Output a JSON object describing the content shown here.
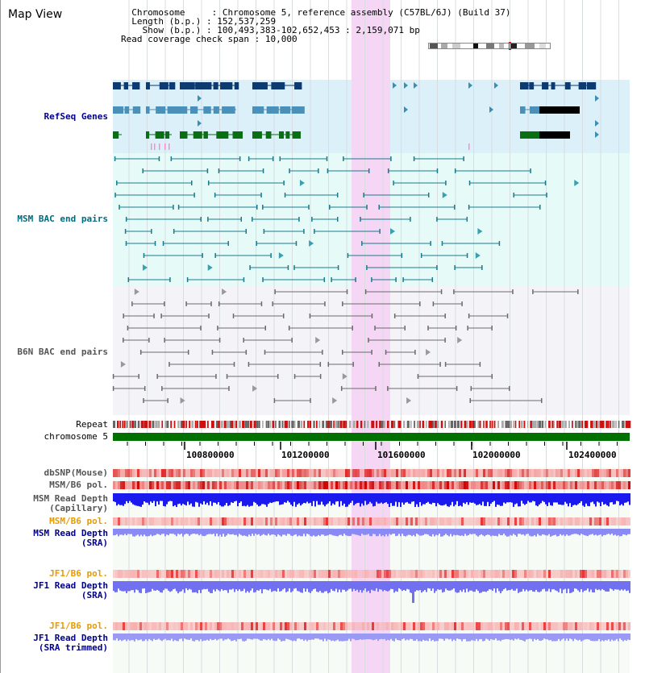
{
  "title": "Map View",
  "info": {
    "chromosome_key": "Chromosome",
    "chromosome_val": "Chromosome 5, reference assembly (C57BL/6J) (Build 37)",
    "length_key": "Length (b.p.)",
    "length_val": "152,537,259",
    "show_key": "Show (b.p.)",
    "show_val": "100,493,383-102,652,453 : 2,159,071 bp",
    "span_key": "Read coverage check span",
    "span_val": "10,000"
  },
  "tracks": {
    "refseq": "RefSeq Genes",
    "msm_bac": "MSM BAC end pairs",
    "b6n_bac": "B6N BAC end pairs",
    "repeat": "Repeat",
    "chromosome": "chromosome 5",
    "dbsnp": "dbSNP(Mouse)",
    "msm_pol_cap": "MSM/B6 pol.",
    "msm_depth_cap_1": "MSM Read Depth",
    "msm_depth_cap_2": "(Capillary)",
    "msm_pol_sra": "MSM/B6 pol.",
    "msm_depth_sra_1": "MSM Read Depth",
    "msm_depth_sra_2": "(SRA)",
    "jf1_pol": "JF1/B6 pol.",
    "jf1_depth_1": "JF1 Read Depth",
    "jf1_depth_2": "(SRA)",
    "jf1_pol_trim": "JF1/B6 pol.",
    "jf1_depth_trim_1": "JF1 Read Depth",
    "jf1_depth_trim_2": "(SRA trimmed)"
  },
  "axis_ticks": [
    "100800000",
    "101200000",
    "101600000",
    "102000000",
    "102400000"
  ],
  "colors": {
    "refseq_bg": "#dcf0fa",
    "msm_bg": "#e6faf8",
    "b6n_bg": "#f4f4f8",
    "highlight": "#f5d7f5",
    "label_blue": "#00008b",
    "label_teal": "#006b80",
    "label_orange": "#e69b00",
    "label_gray": "#555555",
    "chromosome": "#007000"
  }
}
